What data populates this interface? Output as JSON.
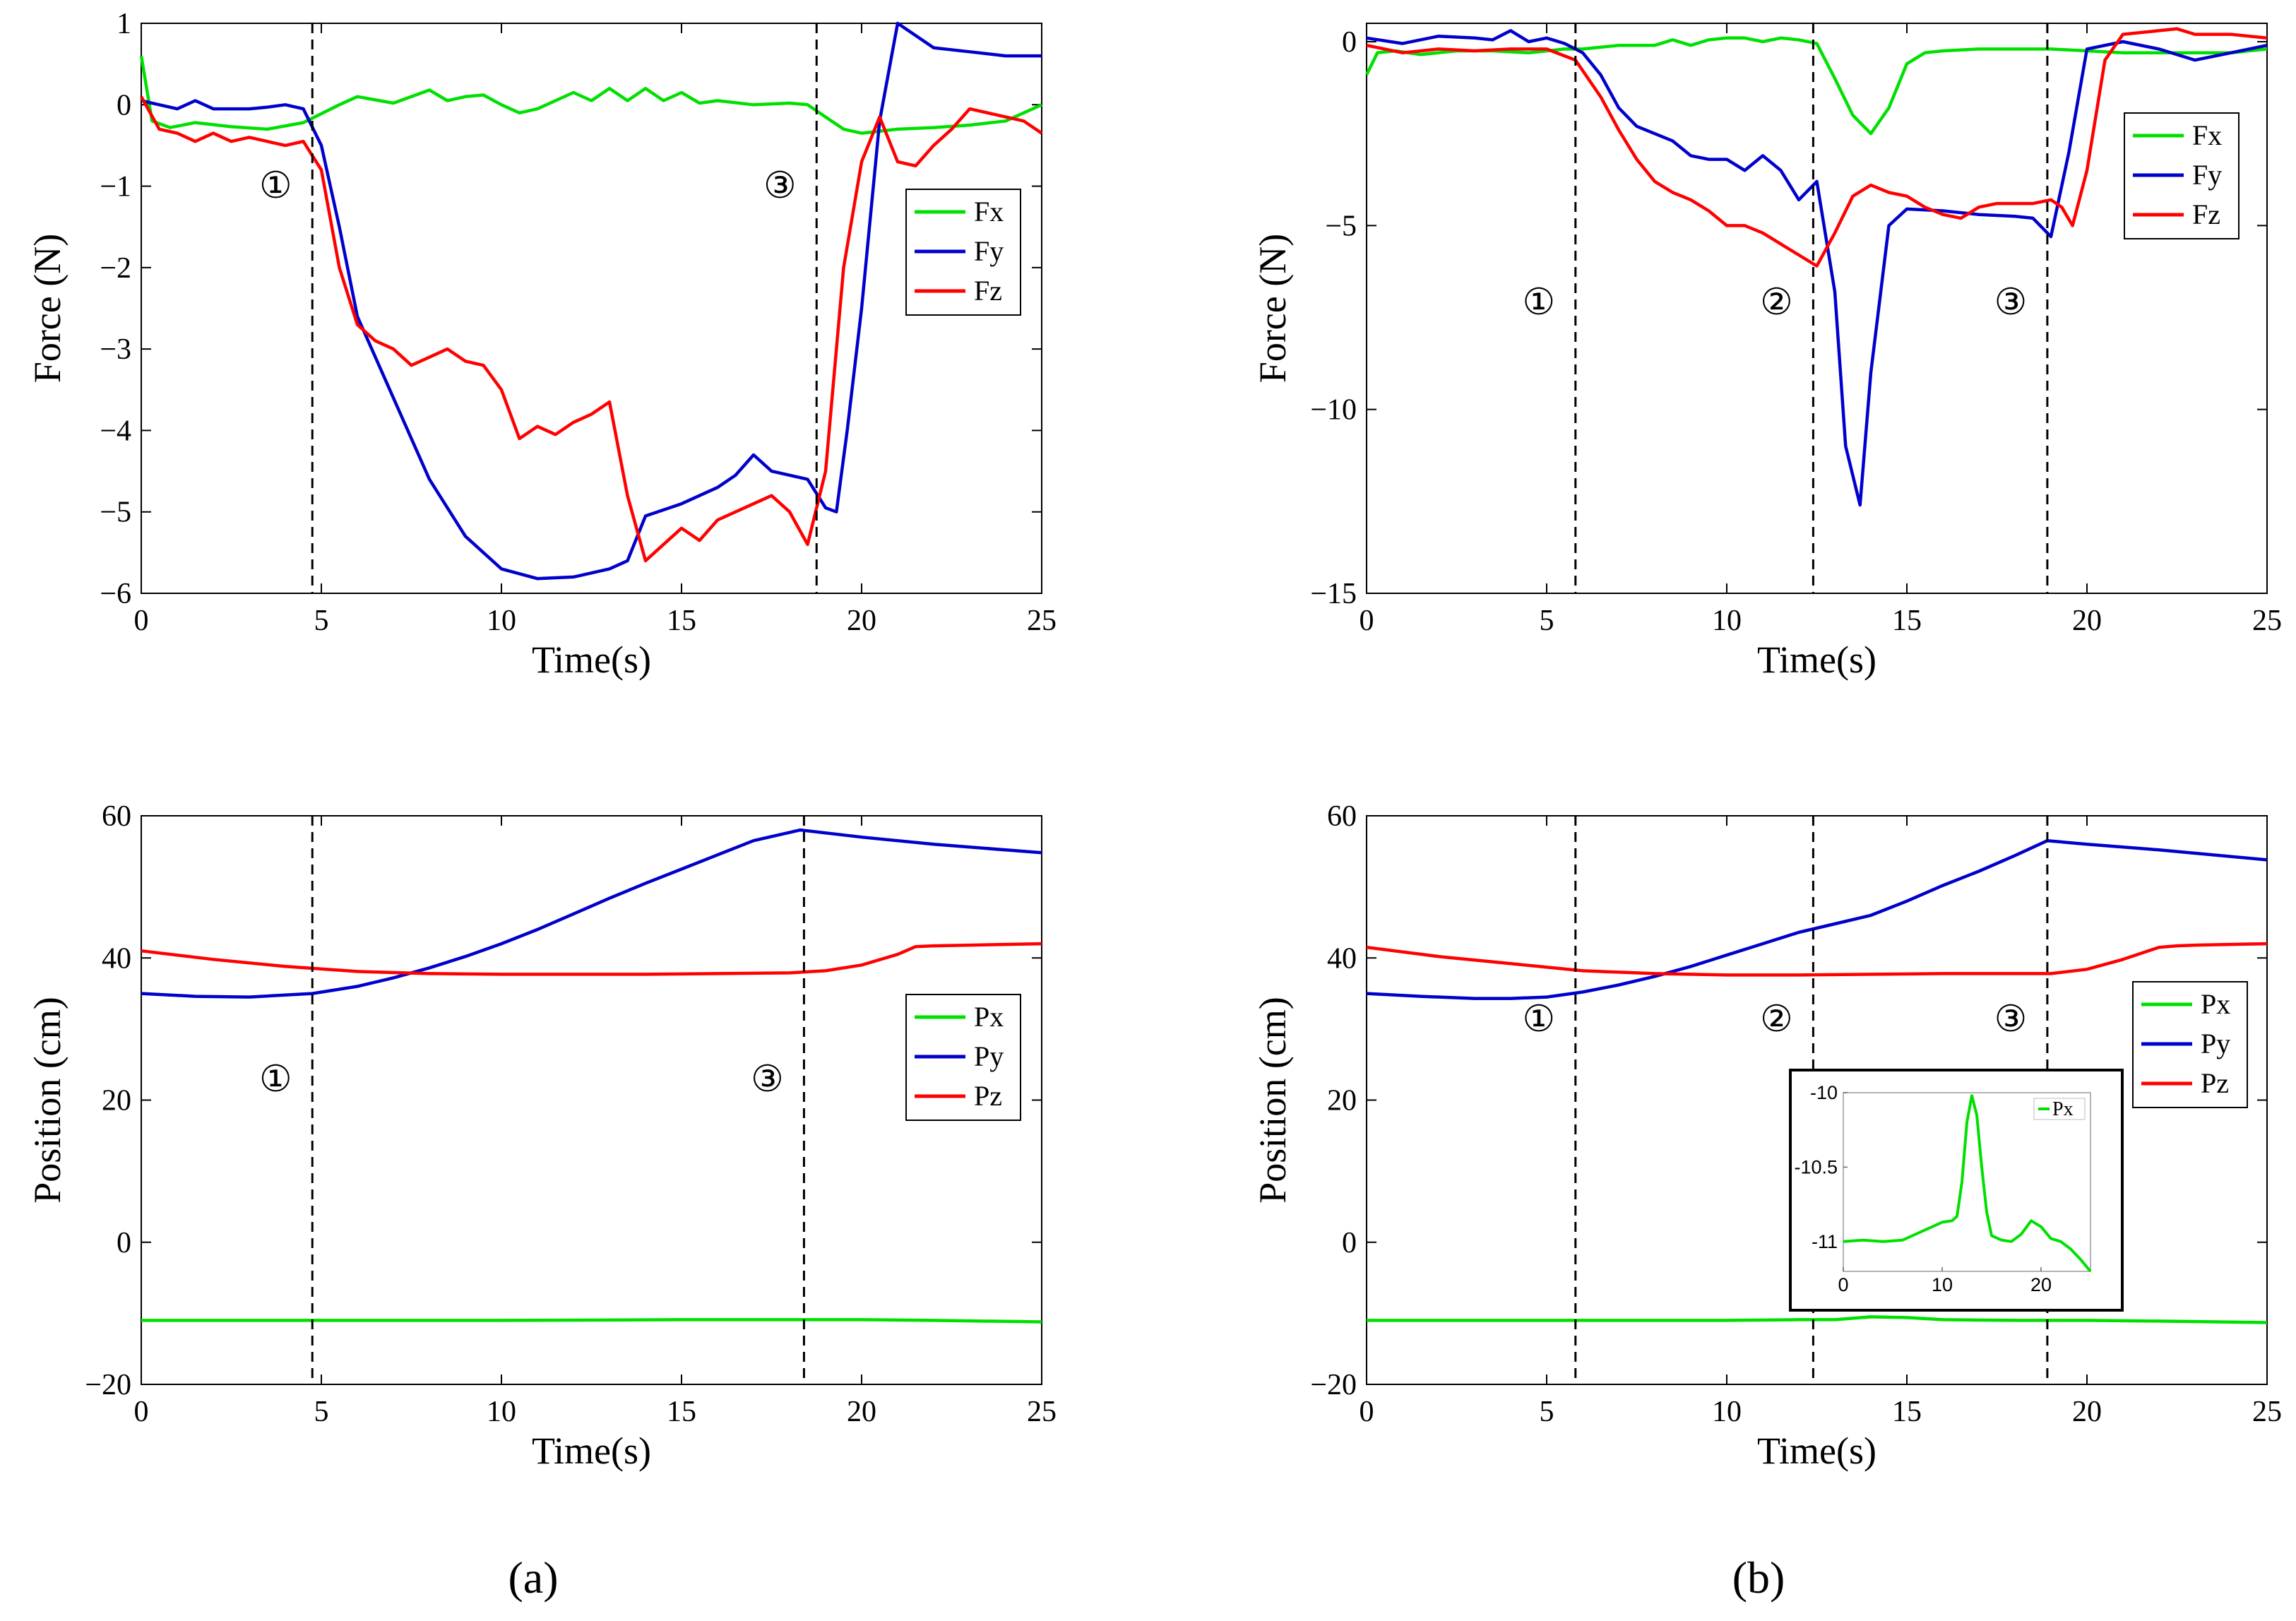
{
  "chart_data": [
    {
      "type": "line",
      "id": "a-force",
      "xlabel": "Time(s)",
      "ylabel": "Force (N)",
      "xlim": [
        0,
        25
      ],
      "ylim": [
        -6,
        1
      ],
      "xticks": [
        0,
        5,
        10,
        15,
        20,
        25
      ],
      "yticks": [
        1,
        0,
        -1,
        -2,
        -3,
        -4,
        -5,
        -6
      ],
      "legend": "right",
      "markers": [
        {
          "x": 4.75,
          "label": "①"
        },
        {
          "x": 18.75,
          "label": "③"
        }
      ],
      "series": [
        {
          "name": "Fx",
          "color": "#00e000",
          "x": [
            0,
            0.3,
            0.8,
            1.5,
            2.5,
            3.5,
            4.5,
            5.5,
            6,
            7,
            8,
            8.5,
            9,
            9.5,
            10,
            10.5,
            11,
            11.5,
            12,
            12.5,
            13,
            13.5,
            14,
            14.5,
            15,
            15.5,
            16,
            17,
            18,
            18.5,
            19,
            19.5,
            20,
            21,
            22,
            23,
            24,
            25
          ],
          "y": [
            0.6,
            -0.2,
            -0.28,
            -0.22,
            -0.27,
            -0.3,
            -0.22,
            0,
            0.1,
            0.02,
            0.18,
            0.05,
            0.1,
            0.12,
            0,
            -0.1,
            -0.05,
            0.05,
            0.15,
            0.05,
            0.2,
            0.05,
            0.2,
            0.05,
            0.15,
            0.02,
            0.05,
            0,
            0.02,
            0,
            -0.15,
            -0.3,
            -0.35,
            -0.3,
            -0.28,
            -0.25,
            -0.2,
            0
          ]
        },
        {
          "name": "Fy",
          "color": "#0000cc",
          "x": [
            0,
            0.5,
            1,
            1.5,
            2,
            2.5,
            3,
            3.5,
            4,
            4.5,
            5,
            5.5,
            6,
            7,
            8,
            9,
            10,
            11,
            12,
            13,
            13.5,
            14,
            15,
            16,
            16.5,
            17,
            17.5,
            18,
            18.5,
            19,
            19.3,
            19.6,
            20,
            20.5,
            21,
            22,
            23,
            24,
            25
          ],
          "y": [
            0.05,
            0,
            -0.05,
            0.05,
            -0.05,
            -0.05,
            -0.05,
            -0.03,
            0,
            -0.05,
            -0.5,
            -1.5,
            -2.6,
            -3.6,
            -4.6,
            -5.3,
            -5.7,
            -5.82,
            -5.8,
            -5.7,
            -5.6,
            -5.05,
            -4.9,
            -4.7,
            -4.55,
            -4.3,
            -4.5,
            -4.55,
            -4.6,
            -4.95,
            -5.0,
            -4.0,
            -2.5,
            -0.2,
            1.0,
            0.7,
            0.65,
            0.6,
            0.6
          ]
        },
        {
          "name": "Fz",
          "color": "#ff0000",
          "x": [
            0,
            0.5,
            1,
            1.5,
            2,
            2.5,
            3,
            3.5,
            4,
            4.5,
            5,
            5.5,
            6,
            6.5,
            7,
            7.5,
            8,
            8.5,
            9,
            9.5,
            10,
            10.5,
            11,
            11.5,
            12,
            12.5,
            13,
            13.5,
            14,
            14.5,
            15,
            15.5,
            16,
            16.5,
            17,
            17.5,
            18,
            18.5,
            19,
            19.5,
            20,
            20.5,
            21,
            21.5,
            22,
            22.5,
            23,
            23.5,
            24,
            24.5,
            25
          ],
          "y": [
            0.1,
            -0.3,
            -0.35,
            -0.45,
            -0.35,
            -0.45,
            -0.4,
            -0.45,
            -0.5,
            -0.45,
            -0.8,
            -2,
            -2.7,
            -2.9,
            -3.0,
            -3.2,
            -3.1,
            -3.0,
            -3.15,
            -3.2,
            -3.5,
            -4.1,
            -3.95,
            -4.05,
            -3.9,
            -3.8,
            -3.65,
            -4.8,
            -5.6,
            -5.4,
            -5.2,
            -5.35,
            -5.1,
            -5.0,
            -4.9,
            -4.8,
            -5.0,
            -5.4,
            -4.5,
            -2.0,
            -0.7,
            -0.15,
            -0.7,
            -0.75,
            -0.5,
            -0.3,
            -0.05,
            -0.1,
            -0.15,
            -0.2,
            -0.35
          ]
        }
      ]
    },
    {
      "type": "line",
      "id": "b-force",
      "xlabel": "Time(s)",
      "ylabel": "Force (N)",
      "xlim": [
        0,
        25
      ],
      "ylim": [
        -15,
        0.5
      ],
      "xticks": [
        0,
        5,
        10,
        15,
        20,
        25
      ],
      "yticks": [
        0,
        -5,
        -10,
        -15
      ],
      "legend": "right",
      "markers": [
        {
          "x": 5.8,
          "label": "①"
        },
        {
          "x": 12.4,
          "label": "②"
        },
        {
          "x": 18.9,
          "label": "③"
        }
      ],
      "series": [
        {
          "name": "Fx",
          "color": "#00e000",
          "x": [
            0,
            0.3,
            0.8,
            1.5,
            2.5,
            3.5,
            4.5,
            5.5,
            6,
            7,
            8,
            8.5,
            9,
            9.5,
            10,
            10.5,
            11,
            11.5,
            12,
            12.5,
            13,
            13.5,
            14,
            14.5,
            15,
            15.5,
            16,
            17,
            18,
            19,
            20,
            21,
            22,
            23,
            24,
            25
          ],
          "y": [
            -0.9,
            -0.3,
            -0.25,
            -0.35,
            -0.25,
            -0.25,
            -0.3,
            -0.2,
            -0.2,
            -0.1,
            -0.1,
            0.05,
            -0.1,
            0.05,
            0.1,
            0.1,
            0,
            0.1,
            0.05,
            -0.05,
            -1,
            -2.0,
            -2.5,
            -1.8,
            -0.6,
            -0.3,
            -0.25,
            -0.2,
            -0.2,
            -0.2,
            -0.25,
            -0.3,
            -0.3,
            -0.3,
            -0.3,
            -0.2
          ]
        },
        {
          "name": "Fy",
          "color": "#0000cc",
          "x": [
            0,
            1,
            2,
            3,
            3.5,
            4,
            4.5,
            5,
            5.5,
            6,
            6.5,
            7,
            7.5,
            8,
            8.5,
            9,
            9.5,
            10,
            10.5,
            11,
            11.5,
            12,
            12.5,
            13,
            13.3,
            13.7,
            14,
            14.5,
            15,
            16,
            17,
            18,
            18.5,
            19,
            19.5,
            20,
            21,
            22,
            23,
            24,
            25
          ],
          "y": [
            0.1,
            -0.05,
            0.15,
            0.1,
            0.05,
            0.3,
            0,
            0.1,
            -0.05,
            -0.3,
            -0.9,
            -1.8,
            -2.3,
            -2.5,
            -2.7,
            -3.1,
            -3.2,
            -3.2,
            -3.5,
            -3.1,
            -3.5,
            -4.3,
            -3.8,
            -6.8,
            -11.0,
            -12.6,
            -9,
            -5,
            -4.55,
            -4.6,
            -4.7,
            -4.75,
            -4.8,
            -5.3,
            -3,
            -0.2,
            0,
            -0.2,
            -0.5,
            -0.3,
            -0.1
          ]
        },
        {
          "name": "Fz",
          "color": "#ff0000",
          "x": [
            0,
            1,
            2,
            3,
            4,
            5,
            5.8,
            6.5,
            7,
            7.5,
            8,
            8.5,
            9,
            9.5,
            10,
            10.5,
            11,
            11.5,
            12,
            12.5,
            13,
            13.5,
            14,
            14.5,
            15,
            15.5,
            16,
            16.5,
            17,
            17.5,
            18,
            18.5,
            19,
            19.3,
            19.6,
            20,
            20.5,
            21,
            22,
            22.5,
            23,
            24,
            25
          ],
          "y": [
            -0.1,
            -0.3,
            -0.2,
            -0.25,
            -0.2,
            -0.2,
            -0.5,
            -1.5,
            -2.4,
            -3.2,
            -3.8,
            -4.1,
            -4.3,
            -4.6,
            -5.0,
            -5.0,
            -5.2,
            -5.5,
            -5.8,
            -6.1,
            -5.2,
            -4.2,
            -3.9,
            -4.1,
            -4.2,
            -4.5,
            -4.7,
            -4.8,
            -4.5,
            -4.4,
            -4.4,
            -4.4,
            -4.3,
            -4.5,
            -5.0,
            -3.5,
            -0.5,
            0.2,
            0.3,
            0.35,
            0.2,
            0.2,
            0.1
          ]
        }
      ]
    },
    {
      "type": "line",
      "id": "a-position",
      "xlabel": "Time(s)",
      "ylabel": "Position (cm)",
      "xlim": [
        0,
        25
      ],
      "ylim": [
        -20,
        60
      ],
      "xticks": [
        0,
        5,
        10,
        15,
        20,
        25
      ],
      "yticks": [
        60,
        40,
        20,
        0,
        -20
      ],
      "legend": "right",
      "markers": [
        {
          "x": 4.75,
          "label": "①"
        },
        {
          "x": 18.4,
          "label": "③"
        }
      ],
      "series": [
        {
          "name": "Px",
          "color": "#00e000",
          "x": [
            0,
            5,
            10,
            15,
            18,
            20,
            22,
            25
          ],
          "y": [
            -11,
            -11,
            -11,
            -10.9,
            -10.9,
            -10.9,
            -11,
            -11.2
          ]
        },
        {
          "name": "Py",
          "color": "#0000cc",
          "x": [
            0,
            1.5,
            3,
            4.75,
            6,
            7,
            8,
            9,
            10,
            11,
            12,
            13,
            14,
            15,
            16,
            17,
            18.3,
            20,
            22,
            25
          ],
          "y": [
            35,
            34.6,
            34.5,
            35,
            36,
            37.2,
            38.6,
            40.2,
            42,
            44,
            46.2,
            48.4,
            50.5,
            52.5,
            54.5,
            56.5,
            58,
            57,
            56,
            54.8
          ]
        },
        {
          "name": "Pz",
          "color": "#ff0000",
          "x": [
            0,
            2,
            4,
            6,
            8,
            10,
            12,
            14,
            16,
            18,
            19,
            20,
            21,
            21.5,
            22,
            23,
            25
          ],
          "y": [
            41,
            39.8,
            38.8,
            38.1,
            37.8,
            37.7,
            37.7,
            37.7,
            37.8,
            37.9,
            38.2,
            39,
            40.5,
            41.6,
            41.7,
            41.8,
            42
          ]
        }
      ]
    },
    {
      "type": "line",
      "id": "b-position",
      "xlabel": "Time(s)",
      "ylabel": "Position (cm)",
      "xlim": [
        0,
        25
      ],
      "ylim": [
        -20,
        60
      ],
      "xticks": [
        0,
        5,
        10,
        15,
        20,
        25
      ],
      "yticks": [
        60,
        40,
        20,
        0,
        -20
      ],
      "legend": "right",
      "markers": [
        {
          "x": 5.8,
          "label": "①"
        },
        {
          "x": 12.4,
          "label": "②"
        },
        {
          "x": 18.9,
          "label": "③"
        }
      ],
      "series": [
        {
          "name": "Px",
          "color": "#00e000",
          "x": [
            0,
            5,
            10,
            12,
            13,
            13.5,
            14,
            15,
            16,
            18,
            20,
            22,
            25
          ],
          "y": [
            -11,
            -11,
            -11,
            -10.9,
            -10.9,
            -10.7,
            -10.5,
            -10.6,
            -10.9,
            -11,
            -11,
            -11.1,
            -11.3
          ]
        },
        {
          "name": "Py",
          "color": "#0000cc",
          "x": [
            0,
            1.5,
            3,
            4,
            5,
            6,
            7,
            8,
            9,
            10,
            11,
            12,
            13,
            14,
            15,
            16,
            17,
            18,
            18.9,
            20,
            22,
            25
          ],
          "y": [
            35,
            34.6,
            34.3,
            34.3,
            34.5,
            35.2,
            36.2,
            37.4,
            38.8,
            40.4,
            42,
            43.6,
            44.8,
            46,
            48,
            50.2,
            52.2,
            54.4,
            56.5,
            56,
            55.2,
            53.8
          ]
        },
        {
          "name": "Pz",
          "color": "#ff0000",
          "x": [
            0,
            2,
            4,
            6,
            8,
            10,
            12,
            14,
            16,
            18,
            19,
            20,
            21,
            22,
            22.5,
            23,
            25
          ],
          "y": [
            41.5,
            40.2,
            39.2,
            38.2,
            37.8,
            37.6,
            37.6,
            37.7,
            37.8,
            37.8,
            37.8,
            38.4,
            39.8,
            41.5,
            41.7,
            41.8,
            42
          ]
        }
      ],
      "inset": {
        "type": "line",
        "xlim": [
          0,
          25
        ],
        "ylim": [
          -11.2,
          -10
        ],
        "xticks": [
          0,
          10,
          20
        ],
        "yticks": [
          -10,
          -10.5,
          -11
        ],
        "series": [
          {
            "name": "Px",
            "color": "#00e000",
            "x": [
              0,
              2,
              4,
              6,
              8,
              10,
              11,
              11.5,
              12,
              12.5,
              13,
              13.5,
              14,
              14.5,
              15,
              16,
              17,
              18,
              19,
              20,
              21,
              22,
              23,
              24,
              25
            ],
            "y": [
              -11,
              -10.99,
              -11,
              -10.99,
              -10.93,
              -10.87,
              -10.86,
              -10.83,
              -10.6,
              -10.2,
              -10.02,
              -10.15,
              -10.5,
              -10.8,
              -10.96,
              -10.99,
              -11,
              -10.95,
              -10.86,
              -10.9,
              -10.98,
              -11.0,
              -11.05,
              -11.12,
              -11.2
            ]
          }
        ]
      }
    }
  ],
  "captions": {
    "a": "(a)",
    "b": "(b)"
  }
}
